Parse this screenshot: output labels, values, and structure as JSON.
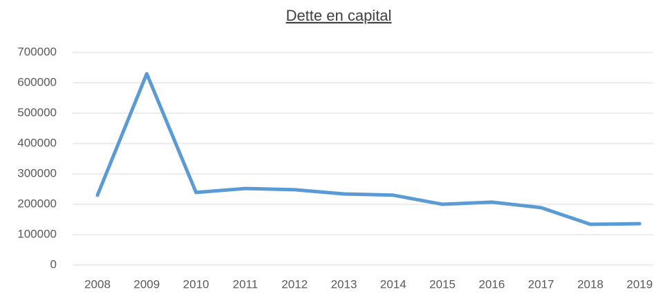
{
  "chart_data": {
    "type": "line",
    "title": "Dette en capital",
    "categories": [
      "2008",
      "2009",
      "2010",
      "2011",
      "2012",
      "2013",
      "2014",
      "2015",
      "2016",
      "2017",
      "2018",
      "2019"
    ],
    "series": [
      {
        "name": "Dette en capital",
        "color": "#5b9bd5",
        "values": [
          230000,
          630000,
          239000,
          252000,
          248000,
          234000,
          230000,
          200000,
          207000,
          189000,
          134000,
          136000
        ]
      }
    ],
    "ylim": [
      0,
      700000
    ],
    "yticks": [
      0,
      100000,
      200000,
      300000,
      400000,
      500000,
      600000,
      700000
    ],
    "grid": true
  }
}
